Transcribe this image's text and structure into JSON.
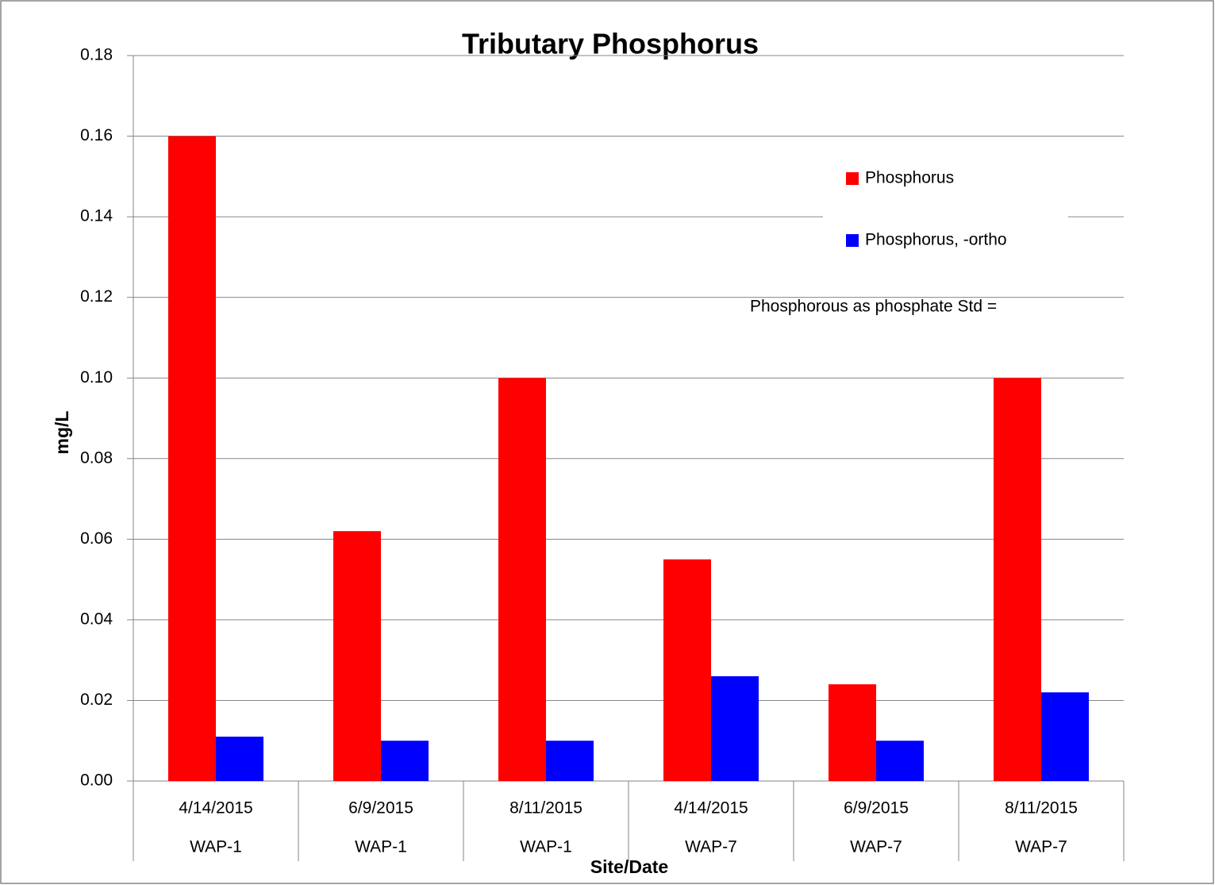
{
  "chart_data": {
    "type": "bar",
    "title": "Tributary Phosphorus",
    "y_label": "mg/L",
    "x_label": "Site/Date",
    "categories": [
      "4/14/2015",
      "6/9/2015",
      "8/11/2015",
      "4/14/2015",
      "6/9/2015",
      "8/11/2015"
    ],
    "category_groups": [
      "WAP-1",
      "WAP-1",
      "WAP-1",
      "WAP-7",
      "WAP-7",
      "WAP-7"
    ],
    "series": [
      {
        "name": "Phosphorus",
        "color": "#ff0000",
        "values": [
          0.16,
          0.062,
          0.1,
          0.055,
          0.024,
          0.1
        ]
      },
      {
        "name": "Phosphorus, -ortho",
        "color": "#0000ff",
        "values": [
          0.011,
          0.01,
          0.01,
          0.026,
          0.01,
          0.022
        ]
      }
    ],
    "annotation": "Phosphorous as phosphate Std =",
    "ylim": [
      0,
      0.18
    ],
    "yticks": [
      {
        "value": 0,
        "label": "0.00"
      },
      {
        "value": 0.02,
        "label": "0.02"
      },
      {
        "value": 0.04,
        "label": "0.04"
      },
      {
        "value": 0.06,
        "label": "0.06"
      },
      {
        "value": 0.08,
        "label": "0.08"
      },
      {
        "value": 0.1,
        "label": "0.10"
      },
      {
        "value": 0.12,
        "label": "0.12"
      },
      {
        "value": 0.14,
        "label": "0.14"
      },
      {
        "value": 0.16,
        "label": "0.16"
      },
      {
        "value": 0.18,
        "label": "0.18"
      }
    ],
    "grid": true,
    "legend_position": "upper right"
  }
}
